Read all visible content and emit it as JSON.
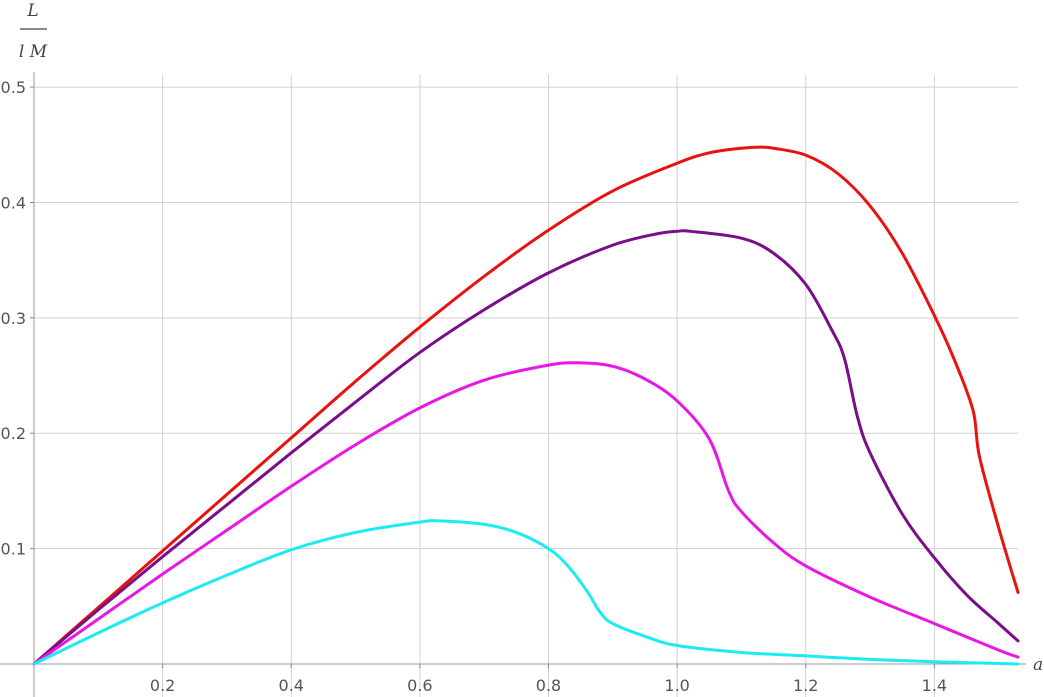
{
  "chart_data": {
    "type": "line",
    "title": "",
    "xlabel": "a",
    "ylabel_numerator": "L",
    "ylabel_denominator": "l M",
    "xlim": [
      0,
      1.53
    ],
    "ylim": [
      0,
      0.52
    ],
    "x_ticks": [
      "0.2",
      "0.4",
      "0.6",
      "0.8",
      "1.0",
      "1.2",
      "1.4"
    ],
    "y_ticks": [
      "0.1",
      "0.2",
      "0.3",
      "0.4",
      "0.5"
    ],
    "grid": true,
    "legend": "none",
    "series": [
      {
        "color": "#e8130f",
        "points": [
          [
            0,
            0
          ],
          [
            0.1,
            0.049
          ],
          [
            0.2,
            0.098
          ],
          [
            0.3,
            0.147
          ],
          [
            0.4,
            0.196
          ],
          [
            0.5,
            0.245
          ],
          [
            0.6,
            0.292
          ],
          [
            0.7,
            0.336
          ],
          [
            0.8,
            0.376
          ],
          [
            0.9,
            0.41
          ],
          [
            1.0,
            0.434
          ],
          [
            1.05,
            0.443
          ],
          [
            1.1,
            0.447
          ],
          [
            1.13,
            0.448
          ],
          [
            1.15,
            0.447
          ],
          [
            1.2,
            0.441
          ],
          [
            1.25,
            0.425
          ],
          [
            1.3,
            0.397
          ],
          [
            1.35,
            0.356
          ],
          [
            1.4,
            0.302
          ],
          [
            1.43,
            0.265
          ],
          [
            1.46,
            0.22
          ],
          [
            1.47,
            0.18
          ],
          [
            1.5,
            0.118
          ],
          [
            1.53,
            0.062
          ]
        ]
      },
      {
        "color": "#7a0e8a",
        "points": [
          [
            0,
            0
          ],
          [
            0.1,
            0.047
          ],
          [
            0.2,
            0.093
          ],
          [
            0.3,
            0.138
          ],
          [
            0.4,
            0.183
          ],
          [
            0.5,
            0.227
          ],
          [
            0.6,
            0.27
          ],
          [
            0.7,
            0.307
          ],
          [
            0.8,
            0.339
          ],
          [
            0.9,
            0.363
          ],
          [
            0.97,
            0.373
          ],
          [
            1.0,
            0.375
          ],
          [
            1.02,
            0.375
          ],
          [
            1.1,
            0.369
          ],
          [
            1.15,
            0.356
          ],
          [
            1.2,
            0.329
          ],
          [
            1.24,
            0.29
          ],
          [
            1.26,
            0.265
          ],
          [
            1.28,
            0.215
          ],
          [
            1.3,
            0.183
          ],
          [
            1.35,
            0.13
          ],
          [
            1.4,
            0.092
          ],
          [
            1.45,
            0.06
          ],
          [
            1.5,
            0.035
          ],
          [
            1.53,
            0.02
          ]
        ]
      },
      {
        "color": "#e817e5",
        "points": [
          [
            0,
            0
          ],
          [
            0.1,
            0.039
          ],
          [
            0.2,
            0.078
          ],
          [
            0.3,
            0.116
          ],
          [
            0.4,
            0.154
          ],
          [
            0.5,
            0.19
          ],
          [
            0.6,
            0.222
          ],
          [
            0.7,
            0.246
          ],
          [
            0.8,
            0.259
          ],
          [
            0.85,
            0.261
          ],
          [
            0.9,
            0.258
          ],
          [
            0.95,
            0.247
          ],
          [
            1.0,
            0.228
          ],
          [
            1.05,
            0.195
          ],
          [
            1.08,
            0.15
          ],
          [
            1.1,
            0.132
          ],
          [
            1.15,
            0.105
          ],
          [
            1.2,
            0.085
          ],
          [
            1.3,
            0.058
          ],
          [
            1.4,
            0.035
          ],
          [
            1.5,
            0.012
          ],
          [
            1.53,
            0.006
          ]
        ]
      },
      {
        "color": "#1cebf2",
        "points": [
          [
            0,
            0
          ],
          [
            0.1,
            0.027
          ],
          [
            0.2,
            0.053
          ],
          [
            0.3,
            0.077
          ],
          [
            0.4,
            0.099
          ],
          [
            0.5,
            0.114
          ],
          [
            0.6,
            0.123
          ],
          [
            0.63,
            0.124
          ],
          [
            0.7,
            0.121
          ],
          [
            0.75,
            0.114
          ],
          [
            0.8,
            0.1
          ],
          [
            0.83,
            0.085
          ],
          [
            0.86,
            0.063
          ],
          [
            0.88,
            0.045
          ],
          [
            0.9,
            0.035
          ],
          [
            0.95,
            0.024
          ],
          [
            1.0,
            0.016
          ],
          [
            1.1,
            0.01
          ],
          [
            1.2,
            0.007
          ],
          [
            1.3,
            0.004
          ],
          [
            1.4,
            0.002
          ],
          [
            1.53,
            0
          ]
        ]
      }
    ]
  }
}
